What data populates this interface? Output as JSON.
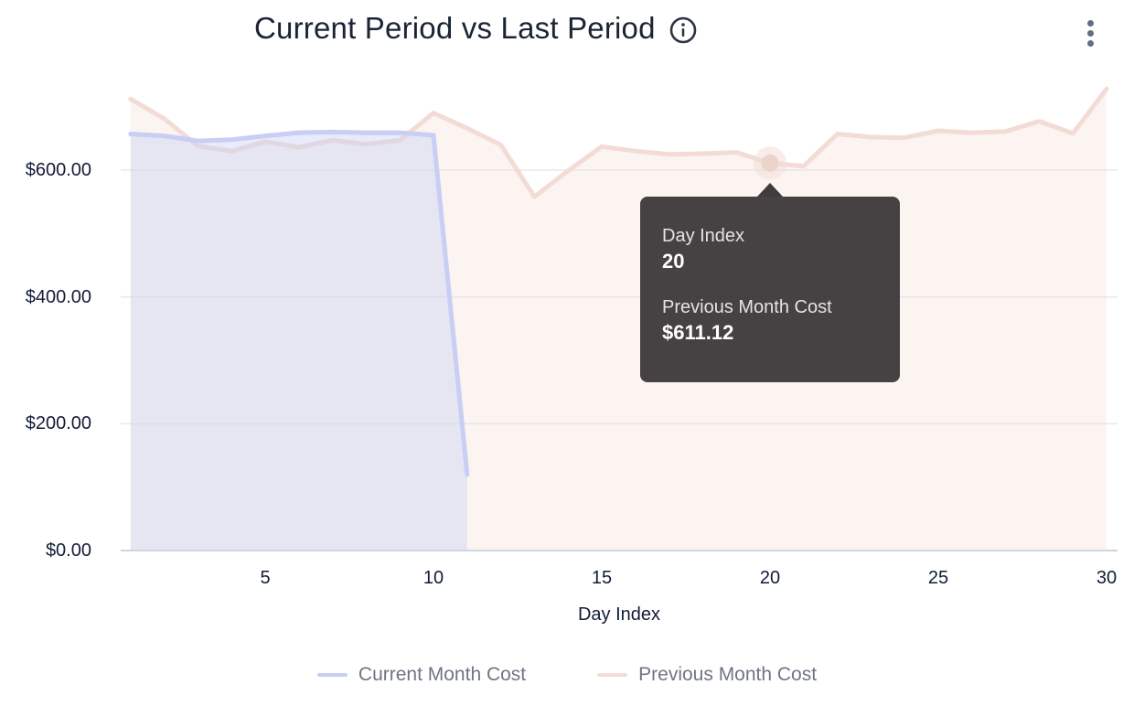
{
  "header": {
    "title": "Current Period vs Last Period",
    "info_icon": "info-icon",
    "menu_icon": "kebab-menu-icon"
  },
  "chart_data": {
    "type": "area",
    "title": "Current Period vs Last Period",
    "xlabel": "Day Index",
    "ylabel": "",
    "xlim": [
      1,
      30
    ],
    "ylim": [
      0,
      740
    ],
    "grid": true,
    "legend_position": "bottom",
    "x_ticks": [
      5,
      10,
      15,
      20,
      25,
      30
    ],
    "y_ticks": [
      {
        "value": 0,
        "label": "$0.00"
      },
      {
        "value": 200,
        "label": "$200.00"
      },
      {
        "value": 400,
        "label": "$400.00"
      },
      {
        "value": 600,
        "label": "$600.00"
      }
    ],
    "series": [
      {
        "name": "Current Month Cost",
        "color": "#c8cef4",
        "fill_color": "rgba(200,208,244,0.42)",
        "x_start": 1,
        "values": [
          657,
          654,
          646,
          648,
          654,
          659,
          660,
          659,
          659,
          655,
          120
        ]
      },
      {
        "name": "Previous Month Cost",
        "color": "#f2dcd5",
        "fill_color": "rgba(242,220,213,0.32)",
        "x_start": 1,
        "values": [
          712,
          681,
          638,
          630,
          645,
          636,
          647,
          641,
          647,
          690,
          666,
          640,
          558,
          599,
          637,
          630,
          625,
          626,
          628,
          611.12,
          606,
          657,
          652,
          651,
          662,
          659,
          661,
          677,
          658,
          728
        ]
      }
    ],
    "highlight": {
      "series": "Previous Month Cost",
      "x": 20,
      "y": 611.12,
      "dot_color": "#ecd3cb",
      "halo_color": "rgba(242,220,213,0.5)"
    },
    "axis_line_color": "#ccd6e3",
    "grid_color": "#e9e9ec"
  },
  "tooltip": {
    "rows": [
      {
        "label": "Day Index",
        "value": "20"
      },
      {
        "label": "Previous Month Cost",
        "value": "$611.12"
      }
    ]
  },
  "legend": {
    "items": [
      {
        "label": "Current Month Cost",
        "color": "#c8cef4"
      },
      {
        "label": "Previous Month Cost",
        "color": "#f2dcd5"
      }
    ]
  }
}
